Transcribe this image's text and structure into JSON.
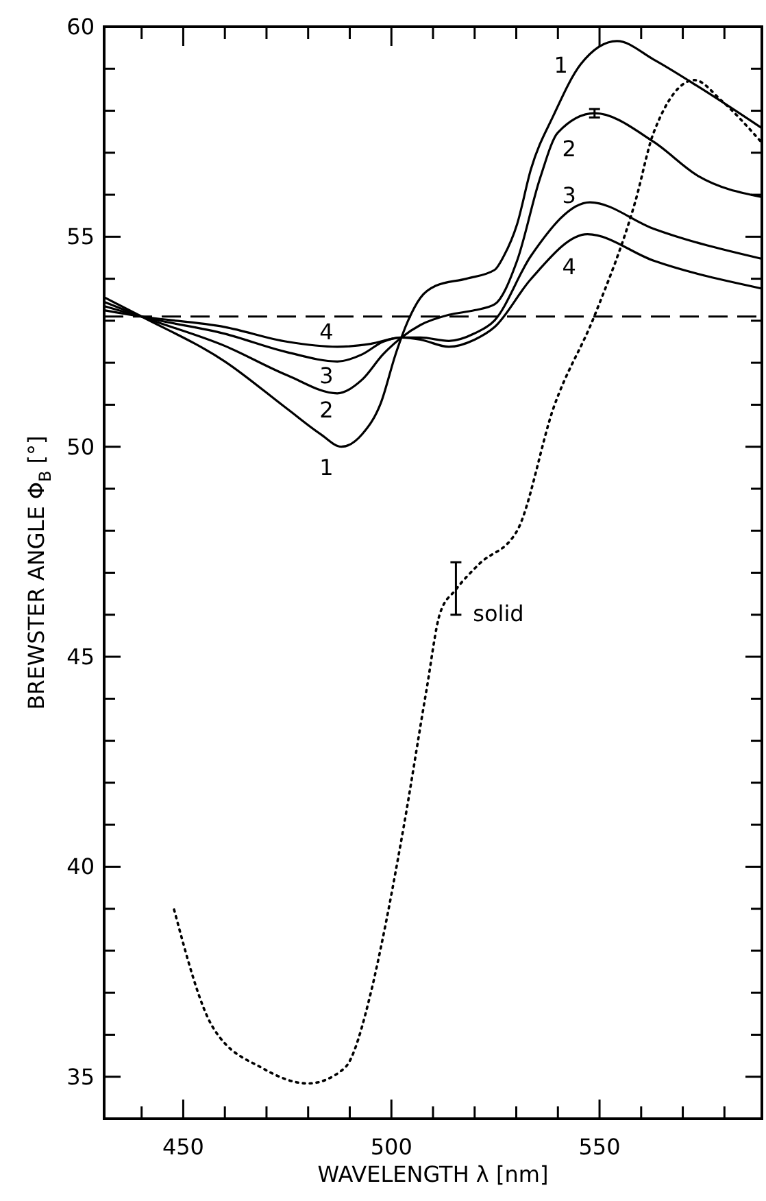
{
  "chart_data": {
    "type": "line",
    "xlabel": "WAVELENGTH  λ   [nm]",
    "ylabel": "BREWSTER  ANGLE  Φ$_{B}$   [°]",
    "xlim": [
      431,
      589
    ],
    "ylim": [
      34,
      60
    ],
    "xticks": [
      {
        "value": 440,
        "label": null
      },
      450,
      {
        "value": 460,
        "label": null
      },
      {
        "value": 470,
        "label": null
      },
      {
        "value": 480,
        "label": null
      },
      {
        "value": 490,
        "label": null
      },
      500,
      {
        "value": 510,
        "label": null
      },
      {
        "value": 520,
        "label": null
      },
      {
        "value": 530,
        "label": null
      },
      {
        "value": 540,
        "label": null
      },
      550,
      {
        "value": 560,
        "label": null
      },
      {
        "value": 570,
        "label": null
      },
      {
        "value": 580,
        "label": null
      }
    ],
    "yticks": [
      35,
      {
        "value": 36,
        "label": null
      },
      {
        "value": 37,
        "label": null
      },
      {
        "value": 38,
        "label": null
      },
      {
        "value": 39,
        "label": null
      },
      40,
      {
        "value": 41,
        "label": null
      },
      {
        "value": 42,
        "label": null
      },
      {
        "value": 43,
        "label": null
      },
      {
        "value": 44,
        "label": null
      },
      45,
      {
        "value": 46,
        "label": null
      },
      {
        "value": 47,
        "label": null
      },
      {
        "value": 48,
        "label": null
      },
      {
        "value": 49,
        "label": null
      },
      50,
      {
        "value": 51,
        "label": null
      },
      {
        "value": 52,
        "label": null
      },
      {
        "value": 53,
        "label": null
      },
      {
        "value": 54,
        "label": null
      },
      55,
      {
        "value": 56,
        "label": null
      },
      {
        "value": 57,
        "label": null
      },
      {
        "value": 58,
        "label": null
      },
      {
        "value": 59,
        "label": null
      },
      60
    ],
    "ref_lines": [
      {
        "axis": "y",
        "value": 53.1,
        "line_style": "dashed",
        "color": "#000000"
      }
    ],
    "series": [
      {
        "name": "1",
        "color": "#000000",
        "line_style": "solid",
        "x": [
          431,
          440,
          460,
          475,
          483,
          488,
          493,
          497.5,
          501,
          504,
          507,
          510.6,
          518,
          524.8,
          527,
          530.2,
          533.5,
          539,
          545.5,
          554.2,
          563,
          573.8,
          588.8
        ],
        "values": [
          53.56,
          53.1,
          52.03,
          50.9,
          50.3,
          50.0,
          50.3,
          51.05,
          52.2,
          53.0,
          53.55,
          53.83,
          54.0,
          54.21,
          54.54,
          55.3,
          56.6,
          57.9,
          59.11,
          59.66,
          59.22,
          58.57,
          57.6
        ]
      },
      {
        "name": "2",
        "color": "#000000",
        "line_style": "solid",
        "x": [
          431,
          440,
          460,
          475,
          487,
          493,
          498,
          502.4,
          507,
          513.8,
          520,
          524.8,
          530.2,
          535.7,
          540,
          548.8,
          563,
          573.8,
          588.8
        ],
        "values": [
          53.45,
          53.1,
          52.4,
          51.7,
          51.27,
          51.6,
          52.2,
          52.6,
          52.9,
          53.14,
          53.25,
          53.39,
          54.43,
          56.39,
          57.48,
          57.94,
          57.26,
          56.44,
          55.95
        ],
        "errors": [
          null,
          null,
          null,
          null,
          null,
          null,
          null,
          null,
          null,
          null,
          null,
          null,
          null,
          null,
          null,
          0.1,
          null,
          null,
          null
        ]
      },
      {
        "name": "3",
        "color": "#000000",
        "line_style": "solid",
        "x": [
          431,
          440,
          460,
          475,
          487,
          493,
          498,
          502.4,
          507,
          513.8,
          520,
          524.8,
          533.5,
          547.7,
          563,
          588.8
        ],
        "values": [
          53.35,
          53.1,
          52.69,
          52.25,
          52.03,
          52.2,
          52.5,
          52.6,
          52.6,
          52.52,
          52.7,
          53.01,
          54.54,
          55.82,
          55.19,
          54.48
        ]
      },
      {
        "name": "4",
        "color": "#000000",
        "line_style": "solid",
        "x": [
          431,
          440,
          460,
          475,
          487,
          495,
          502.4,
          507,
          513.8,
          520,
          524.8,
          533.5,
          547.1,
          563,
          588.8
        ],
        "values": [
          53.25,
          53.1,
          52.85,
          52.5,
          52.38,
          52.45,
          52.6,
          52.55,
          52.38,
          52.55,
          52.85,
          53.99,
          55.06,
          54.43,
          53.77
        ]
      },
      {
        "name": "solid",
        "color": "#000000",
        "line_style": "dotted",
        "x": [
          447.8,
          457.1,
          469.1,
          480,
          488.7,
          495.3,
          497.5,
          502.9,
          508.4,
          511.7,
          515.5,
          521,
          530.2,
          539,
          548.8,
          558.6,
          563,
          572.8,
          579.3,
          588.8
        ],
        "values": [
          38.98,
          36.18,
          35.2,
          34.84,
          35.2,
          37.1,
          38.09,
          40.92,
          44.19,
          46.04,
          46.6,
          47.2,
          48.0,
          50.94,
          53.12,
          55.84,
          57.48,
          58.73,
          58.24,
          57.26
        ],
        "errors": [
          null,
          null,
          null,
          null,
          null,
          null,
          null,
          null,
          null,
          null,
          [
            46.0,
            47.25
          ],
          null,
          null,
          null,
          null,
          null,
          null,
          null,
          null,
          null
        ]
      }
    ]
  }
}
